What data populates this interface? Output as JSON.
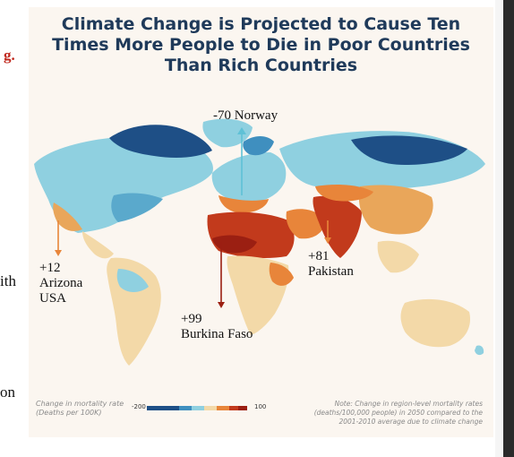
{
  "page": {
    "left_fragments": [
      "g.",
      "ith",
      "on"
    ]
  },
  "figure": {
    "title_lines": [
      "Climate Change is Projected to Cause Ten",
      "Times More People to Die in Poor Countries",
      "Than Rich Countries"
    ],
    "annotations": {
      "norway": "-70 Norway",
      "arizona": [
        "+12",
        "Arizona",
        "USA"
      ],
      "burkina": [
        "+99",
        "Burkina Faso"
      ],
      "pakistan": [
        "+81",
        "Pakistan"
      ]
    },
    "legend": {
      "label_line1": "Change in mortality rate",
      "label_line2": "(Deaths per 100K)",
      "min_label": "-200",
      "max_label": "100",
      "colors": {
        "dark_blue": "#1e4f86",
        "mid_blue": "#3f8fbf",
        "light_blue": "#8fd0e0",
        "pale": "#f3d9a8",
        "orange": "#e8853a",
        "red": "#c23a1c",
        "dark_red": "#9b1f12"
      }
    },
    "note_lines": [
      "Note: Change in region-level mortality rates",
      "(deaths/100,000 people) in 2050 compared to the",
      "2001-2010 average due to climate change"
    ]
  }
}
